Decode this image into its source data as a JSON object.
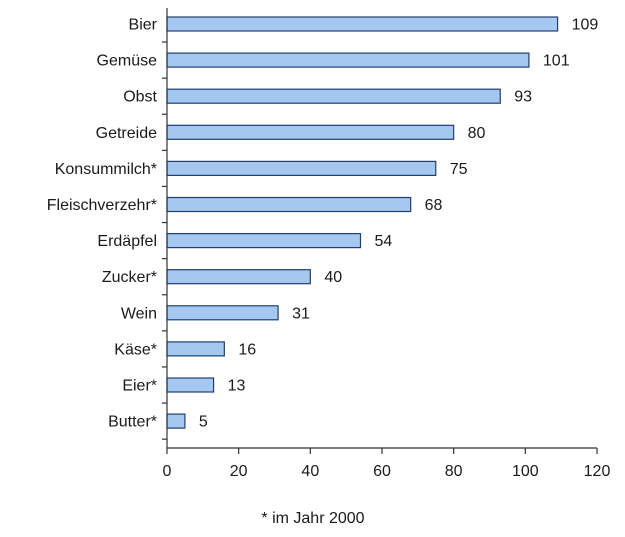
{
  "chart_data": {
    "type": "bar",
    "orientation": "horizontal",
    "categories": [
      "Bier",
      "Gemüse",
      "Obst",
      "Getreide",
      "Konsummilch*",
      "Fleischverzehr*",
      "Erdäpfel",
      "Zucker*",
      "Wein",
      "Käse*",
      "Eier*",
      "Butter*"
    ],
    "values": [
      109,
      101,
      93,
      80,
      75,
      68,
      54,
      40,
      31,
      16,
      13,
      5
    ],
    "value_labels": [
      "109",
      "101",
      "93",
      "80",
      "75",
      "68",
      "54",
      "40",
      "31",
      "16",
      "13",
      "5"
    ],
    "xlim": [
      0,
      120
    ],
    "x_ticks": [
      "0",
      "20",
      "40",
      "60",
      "80",
      "100",
      "120"
    ],
    "title": "",
    "xlabel": "",
    "ylabel": "",
    "grid": false,
    "bar_color": "#a4c8f0",
    "bar_edge_color": "#1f3f73",
    "footnote": "* im Jahr 2000"
  }
}
